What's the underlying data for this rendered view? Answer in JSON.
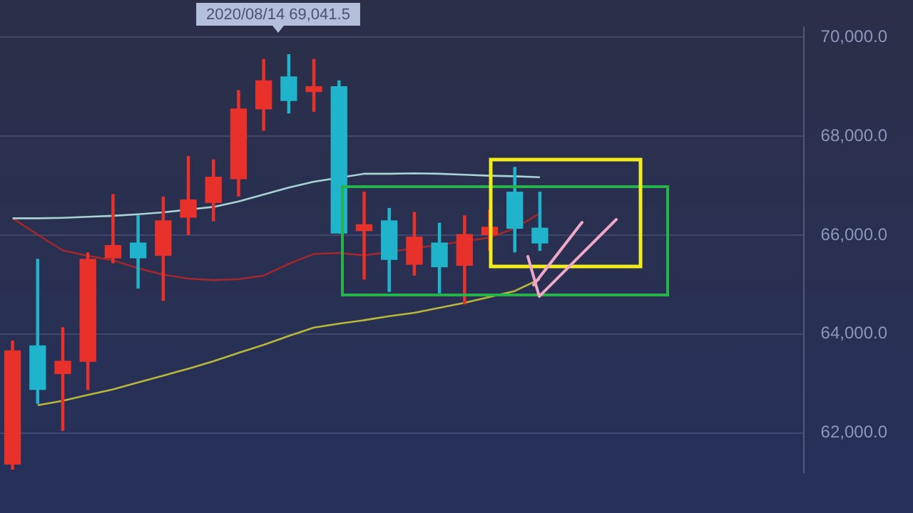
{
  "chart_data": {
    "type": "candlestick",
    "categories": [
      null,
      null,
      null,
      null,
      null,
      null,
      null,
      null,
      null,
      null,
      null,
      null,
      null,
      null,
      null,
      null,
      null,
      null,
      null,
      null,
      null,
      null,
      null,
      null,
      null,
      null,
      null,
      null,
      null,
      null,
      null,
      null
    ],
    "ohlc": [
      [
        61370,
        63860,
        61270,
        63660
      ],
      [
        63760,
        65510,
        62600,
        62880
      ],
      [
        63200,
        64130,
        62050,
        63450
      ],
      [
        63450,
        65640,
        62880,
        65510
      ],
      [
        65540,
        66820,
        65440,
        65790
      ],
      [
        65840,
        66390,
        64930,
        65540
      ],
      [
        65590,
        66770,
        64680,
        66290
      ],
      [
        66360,
        67590,
        66010,
        66710
      ],
      [
        66660,
        67520,
        66290,
        67170
      ],
      [
        67140,
        68920,
        66790,
        68550
      ],
      [
        68550,
        69550,
        68120,
        69120
      ],
      [
        69200,
        69650,
        68470,
        68720
      ],
      [
        68900,
        69550,
        68500,
        69000
      ],
      [
        69000,
        69120,
        66040,
        66040
      ],
      [
        66090,
        66870,
        65110,
        66210
      ],
      [
        66290,
        66540,
        64860,
        65510
      ],
      [
        65410,
        66460,
        65190,
        65960
      ],
      [
        65840,
        66240,
        64830,
        65360
      ],
      [
        65390,
        66390,
        64610,
        66010
      ],
      [
        66010,
        66510,
        65690,
        66160
      ],
      [
        66870,
        67370,
        65660,
        66140
      ],
      [
        66140,
        66870,
        65690,
        65840
      ],
      null,
      null,
      null,
      null,
      null,
      null,
      null,
      null,
      null,
      null
    ],
    "colors": [
      "#e8312a",
      "#1fb4cc",
      "#e8312a",
      "#e8312a",
      "#e8312a",
      "#1fb4cc",
      "#e8312a",
      "#e8312a",
      "#e8312a",
      "#e8312a",
      "#e8312a",
      "#1fb4cc",
      "#e8312a",
      "#1fb4cc",
      "#e8312a",
      "#1fb4cc",
      "#e8312a",
      "#1fb4cc",
      "#e8312a",
      "#e8312a",
      "#1fb4cc",
      "#1fb4cc",
      null,
      null,
      null,
      null,
      null,
      null,
      null,
      null,
      null,
      null
    ],
    "series": [
      {
        "type": "line",
        "color": "#a9d3d3",
        "values": [
          66340,
          66340,
          66350,
          66370,
          66390,
          66420,
          66460,
          null,
          66570,
          66680,
          66820,
          66960,
          67080,
          null,
          67240,
          67240,
          67250,
          67240,
          67220,
          67200,
          67190,
          67170,
          null,
          null,
          null,
          null,
          null,
          null,
          null,
          null,
          null,
          null
        ]
      },
      {
        "type": "line",
        "color": "#a3282d",
        "values": [
          66340,
          66010,
          65690,
          65580,
          65490,
          65330,
          65200,
          65120,
          65090,
          65110,
          65180,
          65420,
          65620,
          65640,
          65590,
          null,
          null,
          null,
          null,
          65950,
          66140,
          66440,
          null,
          null,
          null,
          null,
          null,
          null,
          null,
          null,
          null,
          null
        ]
      },
      {
        "type": "line",
        "color": "#b8b83a",
        "values": [
          null,
          62560,
          62650,
          62770,
          62880,
          63020,
          63160,
          63300,
          63450,
          63620,
          63780,
          63960,
          64130,
          64210,
          64280,
          64360,
          64430,
          64530,
          64630,
          64750,
          64870,
          65110,
          null,
          null,
          null,
          null,
          null,
          null,
          null,
          null,
          null,
          null
        ]
      }
    ],
    "ylim": [
      61200,
      70200
    ],
    "yticks": [
      {
        "value": 62000,
        "label": "62,000.0"
      },
      {
        "value": 64000,
        "label": "64,000.0"
      },
      {
        "value": 66000,
        "label": "66,000.0"
      },
      {
        "value": 68000,
        "label": "68,000.0"
      },
      {
        "value": 70000,
        "label": "70,000.0"
      }
    ],
    "grid": "y",
    "legend": false,
    "annotations": [
      "2020/08/14 69,041.5"
    ]
  }
}
